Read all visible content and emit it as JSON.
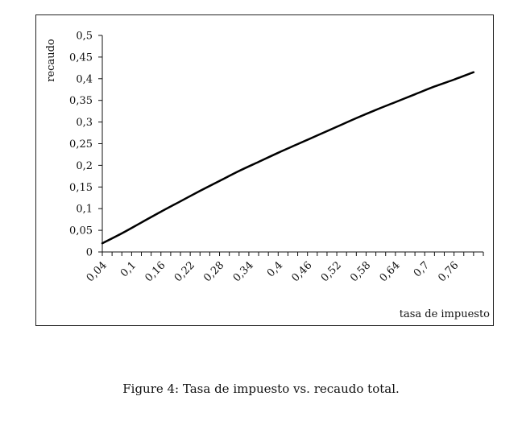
{
  "chart_data": {
    "type": "line",
    "title": "",
    "xlabel": "tasa de impuesto",
    "ylabel": "recaudo",
    "x_tick_labels": [
      "0,04",
      "0,1",
      "0,16",
      "0,22",
      "0,28",
      "0,34",
      "0,4",
      "0,46",
      "0,52",
      "0,58",
      "0,64",
      "0,7",
      "0,76"
    ],
    "y_tick_labels": [
      "0",
      "0,05",
      "0,1",
      "0,15",
      "0,2",
      "0,25",
      "0,3",
      "0,35",
      "0,4",
      "0,45",
      "0,5"
    ],
    "xlim": [
      0.04,
      0.82
    ],
    "ylim": [
      0,
      0.5
    ],
    "grid": false,
    "legend": "none",
    "line_color": "#000000",
    "series": [
      {
        "x": [
          0.04,
          0.08,
          0.12,
          0.16,
          0.2,
          0.24,
          0.28,
          0.32,
          0.36,
          0.4,
          0.44,
          0.48,
          0.52,
          0.56,
          0.6,
          0.64,
          0.68,
          0.72,
          0.76,
          0.8
        ],
        "values": [
          0.02,
          0.043,
          0.068,
          0.093,
          0.117,
          0.141,
          0.164,
          0.187,
          0.208,
          0.229,
          0.249,
          0.269,
          0.289,
          0.309,
          0.328,
          0.346,
          0.364,
          0.382,
          0.398,
          0.415
        ]
      }
    ]
  },
  "caption": "Figure 4:  Tasa de impuesto vs.  recaudo total."
}
